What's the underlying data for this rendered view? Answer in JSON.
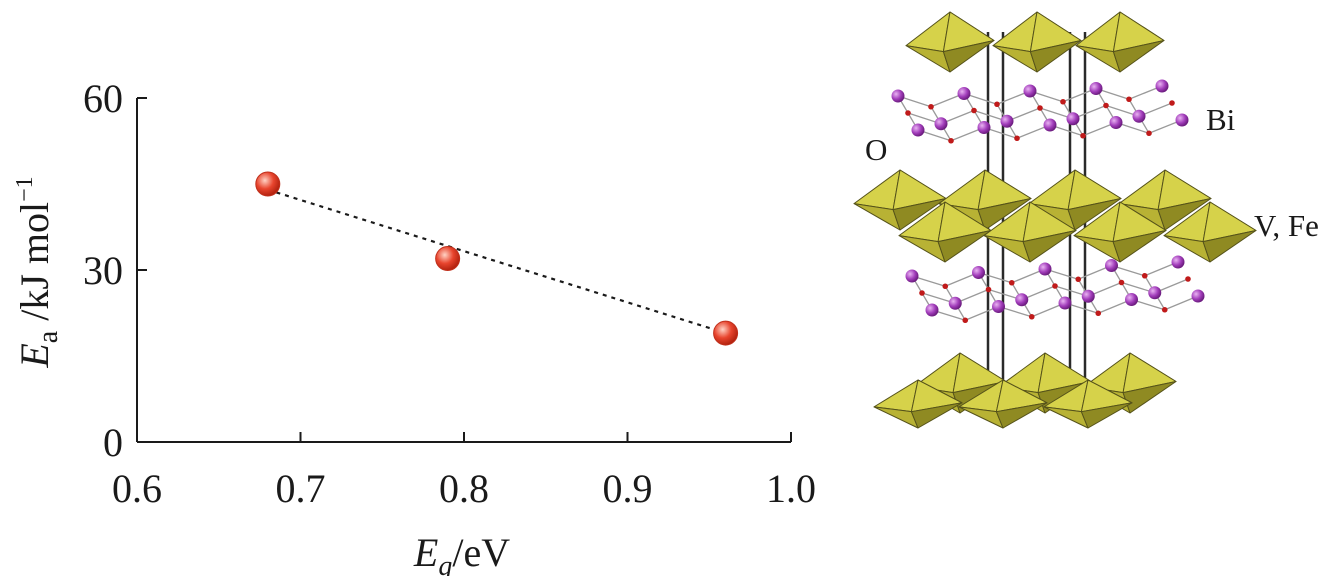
{
  "chart_data": {
    "type": "scatter",
    "x_label": {
      "symbol": "E",
      "subscript": "g",
      "unit": "/eV"
    },
    "y_label": {
      "symbol": "E",
      "subscript": "a",
      "unit": " /kJ mol",
      "superscript": "−1"
    },
    "x_range": [
      0.6,
      1.0
    ],
    "y_range": [
      0,
      60
    ],
    "x_ticks": [
      "0.6",
      "0.7",
      "0.8",
      "0.9",
      "1.0"
    ],
    "y_ticks": [
      "0",
      "30",
      "60"
    ],
    "grid": false,
    "points": [
      {
        "x": 0.68,
        "y": 45
      },
      {
        "x": 0.79,
        "y": 32
      },
      {
        "x": 0.96,
        "y": 19
      }
    ],
    "trendline": {
      "style": "dotted",
      "from": [
        0.68,
        44
      ],
      "to": [
        0.96,
        19
      ]
    },
    "marker_color": "#e8452e",
    "marker_highlight": "#ffd2c4"
  },
  "structure": {
    "labels": {
      "bi": "Bi",
      "o": "O",
      "vfe": "V, Fe"
    },
    "colors": {
      "octahedra_light": "#d6d24a",
      "octahedra_mid": "#b8b234",
      "octahedra_dark": "#8f8a22",
      "bi_atom": "#a23dbb",
      "o_atom": "#c01a1a",
      "bonds": "#9a9a9a"
    }
  }
}
